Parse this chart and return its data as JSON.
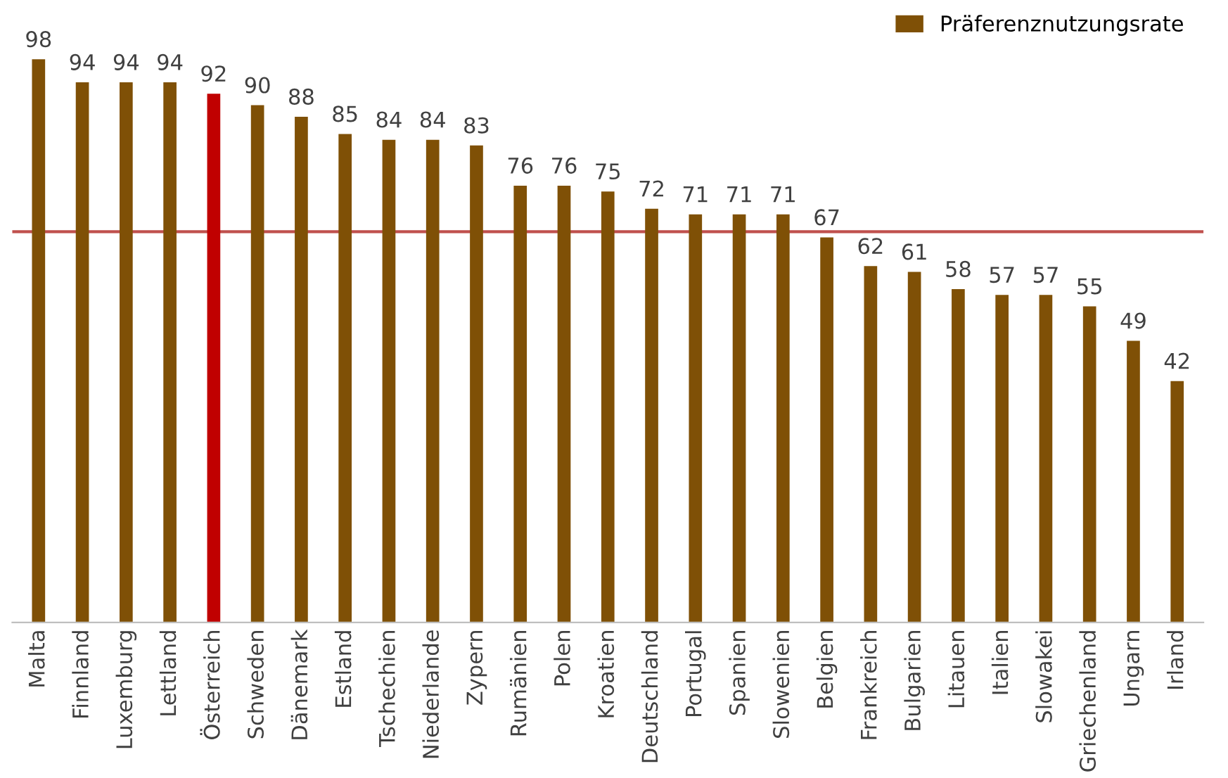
{
  "chart_data": {
    "type": "bar",
    "categories": [
      "Malta",
      "Finnland",
      "Luxemburg",
      "Lettland",
      "Österreich",
      "Schweden",
      "Dänemark",
      "Estland",
      "Tschechien",
      "Niederlande",
      "Zypern",
      "Rumänien",
      "Polen",
      "Kroatien",
      "Deutschland",
      "Portugal",
      "Spanien",
      "Slowenien",
      "Belgien",
      "Frankreich",
      "Bulgarien",
      "Litauen",
      "Italien",
      "Slowakei",
      "Griechenland",
      "Ungarn",
      "Irland"
    ],
    "series": [
      {
        "name": "Präferenznutzungsrate",
        "color": "#7f5006",
        "values": [
          98,
          94,
          94,
          94,
          92,
          90,
          88,
          85,
          84,
          84,
          83,
          76,
          76,
          75,
          72,
          71,
          71,
          71,
          67,
          62,
          61,
          58,
          57,
          57,
          55,
          49,
          42
        ],
        "colors": [
          "#7f5006",
          "#7f5006",
          "#7f5006",
          "#7f5006",
          "#c00000",
          "#7f5006",
          "#7f5006",
          "#7f5006",
          "#7f5006",
          "#7f5006",
          "#7f5006",
          "#7f5006",
          "#7f5006",
          "#7f5006",
          "#7f5006",
          "#7f5006",
          "#7f5006",
          "#7f5006",
          "#7f5006",
          "#7f5006",
          "#7f5006",
          "#7f5006",
          "#7f5006",
          "#7f5006",
          "#7f5006",
          "#7f5006",
          "#7f5006"
        ]
      }
    ],
    "ref_lines": [
      {
        "axis": "y",
        "value": 68,
        "color": "#c0504d"
      }
    ],
    "data_labels": true,
    "legend": "top right",
    "grid": false,
    "tick_labels": "x"
  }
}
